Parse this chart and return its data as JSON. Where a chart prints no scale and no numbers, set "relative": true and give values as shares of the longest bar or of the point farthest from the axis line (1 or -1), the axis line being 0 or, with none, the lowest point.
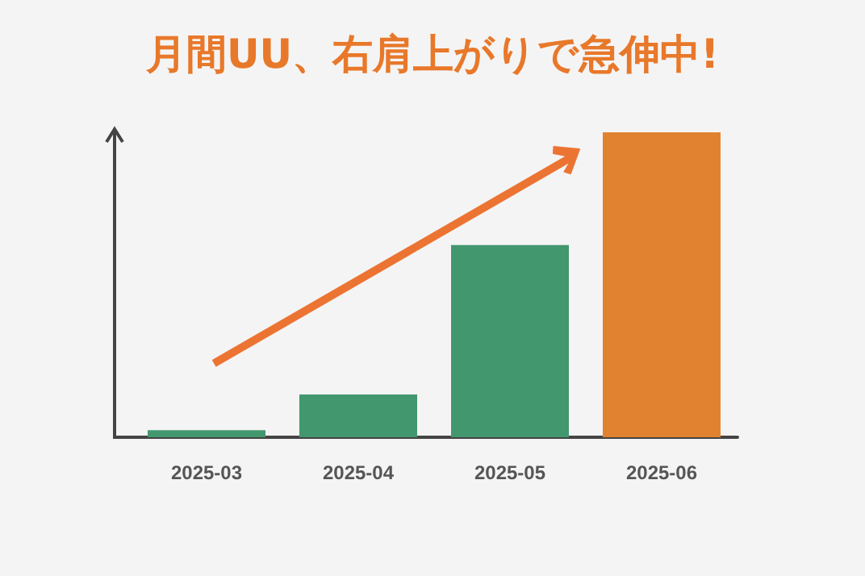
{
  "chart_data": {
    "type": "bar",
    "title": "月間UU、右肩上がりで急伸中!",
    "relative": true,
    "categories": [
      "2025-03",
      "2025-04",
      "2025-05",
      "2025-06"
    ],
    "values": [
      0.023,
      0.14,
      0.63,
      1
    ],
    "colors": [
      "#43976e",
      "#43976e",
      "#43976e",
      "#e0822f"
    ]
  }
}
